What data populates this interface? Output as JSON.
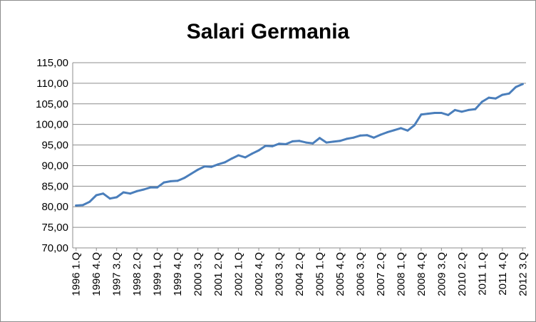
{
  "chart_data": {
    "type": "line",
    "title": "Salari Germania",
    "xlabel": "",
    "ylabel": "",
    "ylim": [
      70,
      115
    ],
    "y_ticks": [
      "70,00",
      "75,00",
      "80,00",
      "85,00",
      "90,00",
      "95,00",
      "100,00",
      "105,00",
      "110,00",
      "115,00"
    ],
    "y_tick_values": [
      70,
      75,
      80,
      85,
      90,
      95,
      100,
      105,
      110,
      115
    ],
    "x_tick_labels": [
      "1996 1.Q",
      "1996 4.Q",
      "1997 3.Q",
      "1998 2.Q",
      "1999 1.Q",
      "1999 4.Q",
      "2000 3.Q",
      "2001 2.Q",
      "2002 1.Q",
      "2002 4.Q",
      "2003 3.Q",
      "2004 2.Q",
      "2005 1.Q",
      "2005 4.Q",
      "2006 3.Q",
      "2007 2.Q",
      "2008 1.Q",
      "2008 4.Q",
      "2009 3.Q",
      "2010 2.Q",
      "2011 1.Q",
      "2011 4.Q",
      "2012 3.Q"
    ],
    "grid": true,
    "legend": "none",
    "color": "#4a7ebb",
    "series": [
      {
        "values": [
          80.3,
          80.4,
          81.2,
          82.8,
          83.2,
          82.0,
          82.3,
          83.5,
          83.2,
          83.8,
          84.2,
          84.7,
          84.7,
          85.9,
          86.2,
          86.3,
          87.0,
          88.0,
          89.0,
          89.8,
          89.7,
          90.3,
          90.8,
          91.7,
          92.5,
          92.0,
          92.9,
          93.7,
          94.8,
          94.7,
          95.3,
          95.2,
          95.9,
          96.0,
          95.6,
          95.4,
          96.7,
          95.6,
          95.8,
          96.0,
          96.5,
          96.8,
          97.3,
          97.4,
          96.8,
          97.5,
          98.1,
          98.6,
          99.1,
          98.5,
          99.8,
          102.4,
          102.6,
          102.8,
          102.8,
          102.3,
          103.5,
          103.1,
          103.5,
          103.7,
          105.5,
          106.5,
          106.3,
          107.2,
          107.5,
          109.1,
          109.8
        ]
      }
    ]
  }
}
